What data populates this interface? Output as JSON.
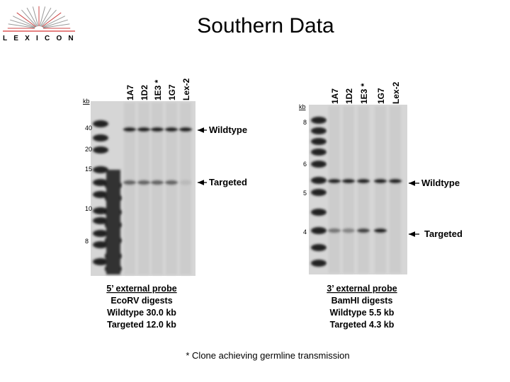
{
  "logo": "LEXICON",
  "title": "Southern Data",
  "panels": [
    {
      "lanes": [
        "1A7",
        "1D2",
        "1E3 *",
        "1G7",
        "Lex-2"
      ],
      "kb_label": "kb",
      "markers": [
        "40",
        "20",
        "15",
        "10",
        "8"
      ],
      "bands": [
        "Wildtype",
        "Targeted"
      ],
      "caption": [
        "5’ external probe",
        "EcoRV digests",
        "Wildtype 30.0 kb",
        "Targeted 12.0 kb"
      ]
    },
    {
      "lanes": [
        "1A7",
        "1D2",
        "1E3 *",
        "1G7",
        "Lex-2"
      ],
      "kb_label": "kb",
      "markers": [
        "8",
        "6",
        "5",
        "4"
      ],
      "bands": [
        "Wildtype",
        "Targeted"
      ],
      "caption": [
        "3’ external probe",
        "BamHI digests",
        "Wildtype 5.5 kb",
        "Targeted 4.3 kb"
      ]
    }
  ],
  "footnote": "* Clone achieving germline transmission"
}
